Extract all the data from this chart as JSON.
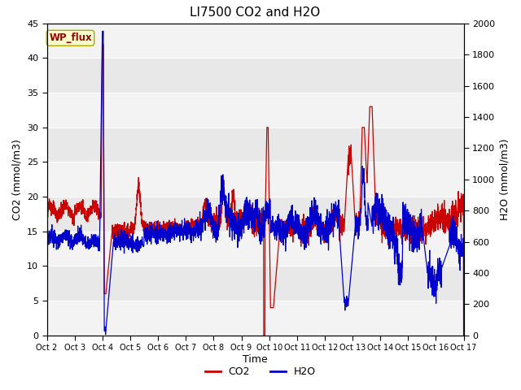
{
  "title": "LI7500 CO2 and H2O",
  "xlabel": "Time",
  "ylabel_left": "CO2 (mmol/m3)",
  "ylabel_right": "H2O (mmol/m3)",
  "xlim_days": [
    0,
    15
  ],
  "ylim_left": [
    0,
    45
  ],
  "ylim_right": [
    0,
    2000
  ],
  "yticks_left": [
    0,
    5,
    10,
    15,
    20,
    25,
    30,
    35,
    40,
    45
  ],
  "yticks_right": [
    0,
    200,
    400,
    600,
    800,
    1000,
    1200,
    1400,
    1600,
    1800,
    2000
  ],
  "xtick_labels": [
    "Oct 2",
    "Oct 3",
    "Oct 4",
    "Oct 5",
    "Oct 6",
    "Oct 7",
    "Oct 8",
    "Oct 9",
    "Oct 10",
    "Oct 11",
    "Oct 12",
    "Oct 13",
    "Oct 14",
    "Oct 15",
    "Oct 16",
    "Oct 17"
  ],
  "legend_co2_color": "#cc0000",
  "legend_h2o_color": "#0000cc",
  "plot_bg_color": "#e8e8e8",
  "band_color": "#d0d0d0",
  "annotation_text": "WP_flux",
  "annotation_bg": "#ffffcc",
  "annotation_border": "#aaaa00",
  "title_fontsize": 11,
  "axis_label_fontsize": 9,
  "tick_fontsize": 8
}
